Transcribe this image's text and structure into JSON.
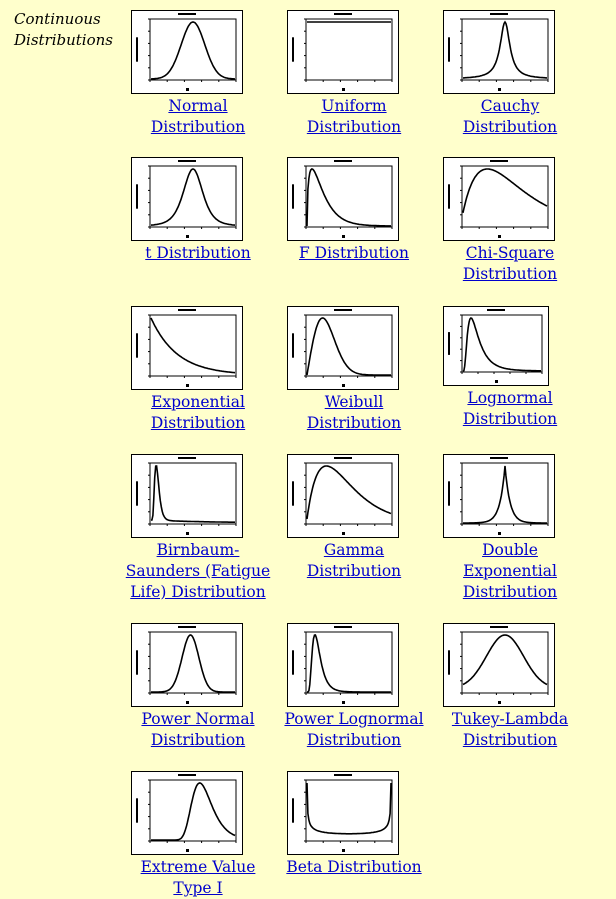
{
  "section_label": "Continuous\nDistributions",
  "distributions": [
    {
      "label": "Normal\nDistribution",
      "shape": "normal"
    },
    {
      "label": "Uniform\nDistribution",
      "shape": "uniform"
    },
    {
      "label": "Cauchy\nDistribution",
      "shape": "cauchy"
    },
    {
      "label": "t Distribution",
      "shape": "t"
    },
    {
      "label": "F Distribution",
      "shape": "f"
    },
    {
      "label": "Chi-Square\nDistribution",
      "shape": "chisq"
    },
    {
      "label": "Exponential\nDistribution",
      "shape": "exponential"
    },
    {
      "label": "Weibull\nDistribution",
      "shape": "weibull"
    },
    {
      "label": "Lognormal\nDistribution",
      "shape": "lognormal"
    },
    {
      "label": "Birnbaum-\nSaunders (Fatigue\nLife) Distribution",
      "shape": "birnbaum"
    },
    {
      "label": "Gamma\nDistribution",
      "shape": "gamma"
    },
    {
      "label": "Double\nExponential\nDistribution",
      "shape": "doubleexp"
    },
    {
      "label": "Power Normal\nDistribution",
      "shape": "powernormal"
    },
    {
      "label": "Power Lognormal\nDistribution",
      "shape": "powerlognormal"
    },
    {
      "label": "Tukey-Lambda\nDistribution",
      "shape": "tukey"
    },
    {
      "label": "Extreme Value\nType I",
      "shape": "extreme"
    },
    {
      "label": "Beta Distribution",
      "shape": "beta"
    }
  ]
}
